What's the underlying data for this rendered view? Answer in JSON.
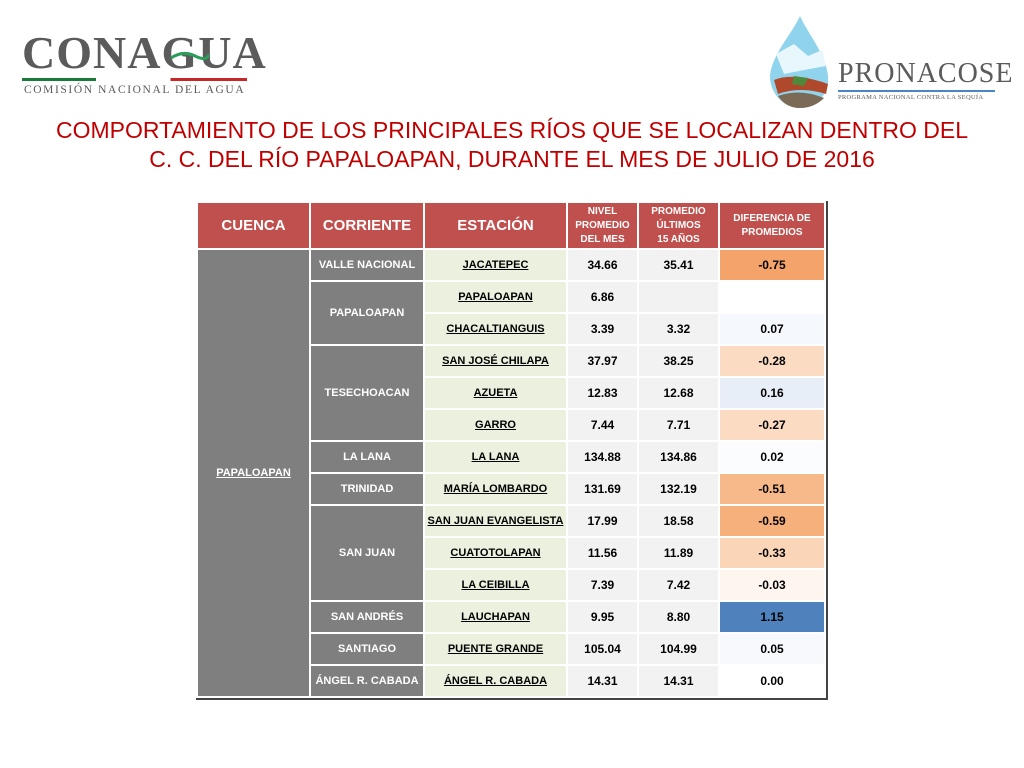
{
  "logos": {
    "conagua_name": "CONAGUA",
    "conagua_subtitle": "COMISIÓN NACIONAL DEL AGUA",
    "pronacose_name": "PRONACOSE",
    "pronacose_subtitle": "PROGRAMA NACIONAL CONTRA LA SEQUÍA"
  },
  "title": {
    "line1": "COMPORTAMIENTO DE LOS PRINCIPALES RÍOS QUE SE LOCALIZAN DENTRO DEL",
    "line2": "C. C. DEL RÍO PAPALOAPAN, DURANTE EL MES DE JULIO DE 2016"
  },
  "table": {
    "headers": {
      "cuenca": "CUENCA",
      "corriente": "CORRIENTE",
      "estacion": "ESTACIÓN",
      "nivel_l1": "NIVEL",
      "nivel_l2": "PROMEDIO",
      "nivel_l3": "DEL MES",
      "promedio_l1": "PROMEDIO",
      "promedio_l2": "ÚLTIMOS",
      "promedio_l3": "15 AÑOS",
      "diferencia_l1": "DIFERENCIA DE",
      "diferencia_l2": "PROMEDIOS"
    },
    "cuenca": "PAPALOAPAN",
    "corrientes": [
      "VALLE NACIONAL",
      "PAPALOAPAN",
      "TESECHOACAN",
      "LA LANA",
      "TRINIDAD",
      "SAN JUAN",
      "SAN ANDRÉS",
      "SANTIAGO",
      "ÁNGEL R. CABADA"
    ],
    "rows": [
      {
        "estacion": "JACATEPEC",
        "nivel": "34.66",
        "promedio": "35.41",
        "diferencia": "-0.75",
        "color": "#f4a46a"
      },
      {
        "estacion": "PAPALOAPAN",
        "nivel": "6.86",
        "promedio": "",
        "diferencia": "",
        "color": "#ffffff"
      },
      {
        "estacion": "CHACALTIANGUIS",
        "nivel": "3.39",
        "promedio": "3.32",
        "diferencia": "0.07",
        "color": "#f5f8fc"
      },
      {
        "estacion": "SAN JOSÉ CHILAPA",
        "nivel": "37.97",
        "promedio": "38.25",
        "diferencia": "-0.28",
        "color": "#fbdcc3"
      },
      {
        "estacion": "AZUETA",
        "nivel": "12.83",
        "promedio": "12.68",
        "diferencia": "0.16",
        "color": "#e8eef8"
      },
      {
        "estacion": "GARRO",
        "nivel": "7.44",
        "promedio": "7.71",
        "diferencia": "-0.27",
        "color": "#fbdcc3"
      },
      {
        "estacion": "LA LANA",
        "nivel": "134.88",
        "promedio": "134.86",
        "diferencia": "0.02",
        "color": "#fbfcfe"
      },
      {
        "estacion": "MARÍA LOMBARDO",
        "nivel": "131.69",
        "promedio": "132.19",
        "diferencia": "-0.51",
        "color": "#f7b98a"
      },
      {
        "estacion": "SAN JUAN EVANGELISTA",
        "nivel": "17.99",
        "promedio": "18.58",
        "diferencia": "-0.59",
        "color": "#f6b07c"
      },
      {
        "estacion": "CUATOTOLAPAN",
        "nivel": "11.56",
        "promedio": "11.89",
        "diferencia": "-0.33",
        "color": "#fbd5b8"
      },
      {
        "estacion": "LA CEIBILLA",
        "nivel": "7.39",
        "promedio": "7.42",
        "diferencia": "-0.03",
        "color": "#fef5ee"
      },
      {
        "estacion": "LAUCHAPAN",
        "nivel": "9.95",
        "promedio": "8.80",
        "diferencia": "1.15",
        "color": "#4f81bd"
      },
      {
        "estacion": "PUENTE GRANDE",
        "nivel": "105.04",
        "promedio": "104.99",
        "diferencia": "0.05",
        "color": "#f7f9fd"
      },
      {
        "estacion": "ÁNGEL R. CABADA",
        "nivel": "14.31",
        "promedio": "14.31",
        "diferencia": "0.00",
        "color": "#ffffff"
      }
    ]
  }
}
